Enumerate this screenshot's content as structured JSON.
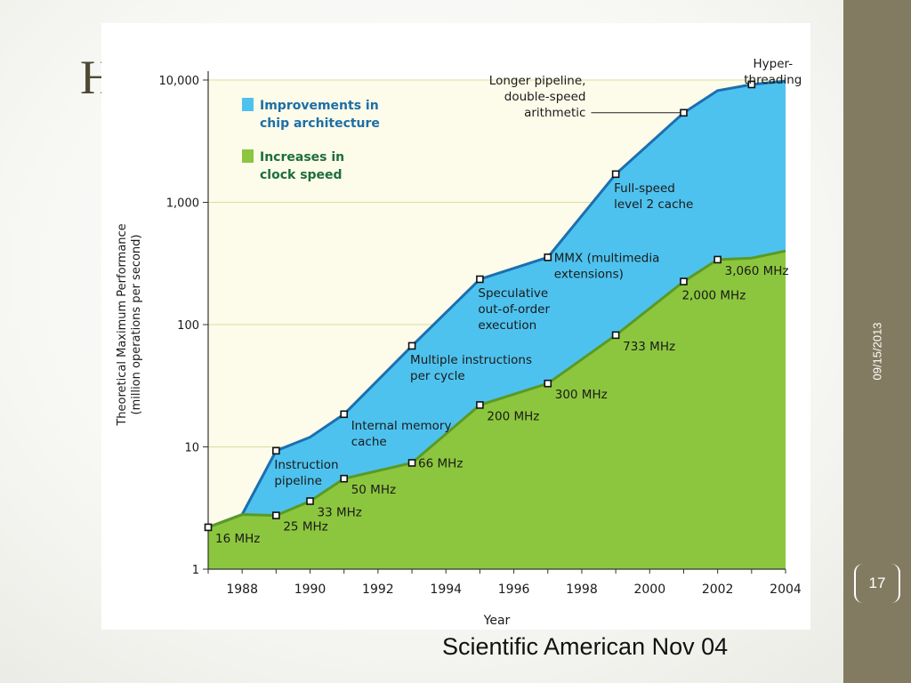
{
  "slide": {
    "title_fragment": "H",
    "date": "09/15/2013",
    "page_number": "17",
    "caption": "Scientific American Nov 04"
  },
  "colors": {
    "band": "#837b61",
    "plot_bg": "#fdfbea",
    "grid": "#d6dfa0",
    "blue_fill": "#4ec2ee",
    "blue_line": "#1b6fb0",
    "green_fill": "#8cc63e",
    "green_line": "#5a9a24",
    "text": "#1a1a1a",
    "legend_text": "#1d6fa5",
    "legend_green_text": "#1d6e3c"
  },
  "chart_data": {
    "type": "area",
    "ylabel": [
      "Theoretical Maximum Performance",
      "(million operations per second)"
    ],
    "xlabel": "Year",
    "xlim": [
      1987,
      2004
    ],
    "ylim": [
      1,
      10000
    ],
    "yscale": "log",
    "yticks": [
      1,
      10,
      100,
      1000,
      10000
    ],
    "ytick_labels": [
      "1",
      "10",
      "100",
      "1,000",
      "10,000"
    ],
    "xticks": [
      1988,
      1990,
      1992,
      1994,
      1996,
      1998,
      2000,
      2002,
      2004
    ],
    "grid": "horizontal",
    "legend": [
      {
        "label": [
          "Improvements in",
          "chip architecture"
        ],
        "color": "#4ec2ee"
      },
      {
        "label": [
          "Increases in",
          "clock speed"
        ],
        "color": "#8cc63e"
      }
    ],
    "legend_position": "top-left",
    "series": [
      {
        "name": "clock",
        "points": [
          {
            "x": 1987,
            "y": 2.2
          },
          {
            "x": 1988,
            "y": 2.8
          },
          {
            "x": 1989,
            "y": 2.75
          },
          {
            "x": 1990,
            "y": 3.6
          },
          {
            "x": 1991,
            "y": 5.5
          },
          {
            "x": 1993,
            "y": 7.4
          },
          {
            "x": 1995,
            "y": 22
          },
          {
            "x": 1997,
            "y": 33
          },
          {
            "x": 1999,
            "y": 82
          },
          {
            "x": 2001,
            "y": 225
          },
          {
            "x": 2002,
            "y": 340
          },
          {
            "x": 2003,
            "y": 350
          },
          {
            "x": 2004,
            "y": 400
          }
        ]
      },
      {
        "name": "architecture",
        "points": [
          {
            "x": 1987,
            "y": 2.2
          },
          {
            "x": 1988,
            "y": 2.8
          },
          {
            "x": 1989,
            "y": 9.3
          },
          {
            "x": 1990,
            "y": 12
          },
          {
            "x": 1991,
            "y": 18.5
          },
          {
            "x": 1993,
            "y": 67
          },
          {
            "x": 1995,
            "y": 235
          },
          {
            "x": 1997,
            "y": 355
          },
          {
            "x": 1999,
            "y": 1700
          },
          {
            "x": 2001,
            "y": 5400
          },
          {
            "x": 2002,
            "y": 8200
          },
          {
            "x": 2003,
            "y": 9200
          },
          {
            "x": 2004,
            "y": 9800
          }
        ]
      }
    ],
    "annotations": [
      {
        "x": 1987,
        "y": 2.2,
        "lines": [
          "16 MHz"
        ],
        "anchor": "right-below"
      },
      {
        "x": 1989,
        "y": 2.75,
        "lines": [
          "25 MHz"
        ],
        "anchor": "right-below"
      },
      {
        "x": 1990,
        "y": 3.6,
        "lines": [
          "33 MHz"
        ],
        "anchor": "right-below"
      },
      {
        "x": 1991,
        "y": 5.5,
        "lines": [
          "50 MHz"
        ],
        "anchor": "right-below"
      },
      {
        "x": 1993,
        "y": 7.4,
        "lines": [
          "66 MHz"
        ],
        "anchor": "right"
      },
      {
        "x": 1995,
        "y": 22,
        "lines": [
          "200 MHz"
        ],
        "anchor": "right-below"
      },
      {
        "x": 1997,
        "y": 33,
        "lines": [
          "300 MHz"
        ],
        "anchor": "right-below"
      },
      {
        "x": 1999,
        "y": 82,
        "lines": [
          "733 MHz"
        ],
        "anchor": "right-below"
      },
      {
        "x": 2001,
        "y": 225,
        "lines": [
          "2,000 MHz"
        ],
        "anchor": "below"
      },
      {
        "x": 2002,
        "y": 340,
        "lines": [
          "3,060 MHz"
        ],
        "anchor": "right-below"
      },
      {
        "x": 1989,
        "y": 9.3,
        "lines": [
          "Instruction",
          "pipeline"
        ],
        "anchor": "below"
      },
      {
        "x": 1991,
        "y": 18.5,
        "lines": [
          "Internal memory",
          "cache"
        ],
        "anchor": "right-below"
      },
      {
        "x": 1993,
        "y": 67,
        "lines": [
          "Multiple instructions",
          "per cycle"
        ],
        "anchor": "below"
      },
      {
        "x": 1995,
        "y": 235,
        "lines": [
          "Speculative",
          "out-of-order",
          "execution"
        ],
        "anchor": "below"
      },
      {
        "x": 1997,
        "y": 355,
        "lines": [
          "MMX (multimedia",
          "extensions)"
        ],
        "anchor": "right"
      },
      {
        "x": 1999,
        "y": 1700,
        "lines": [
          "Full-speed",
          "level 2 cache"
        ],
        "anchor": "below"
      },
      {
        "x": 2001,
        "y": 5400,
        "lines": [
          "Longer pipeline,",
          "double-speed",
          "arithmetic"
        ],
        "anchor": "left-leader"
      },
      {
        "x": 2003,
        "y": 9200,
        "lines": [
          "Hyper-",
          "threading"
        ],
        "anchor": "below-center"
      }
    ]
  }
}
